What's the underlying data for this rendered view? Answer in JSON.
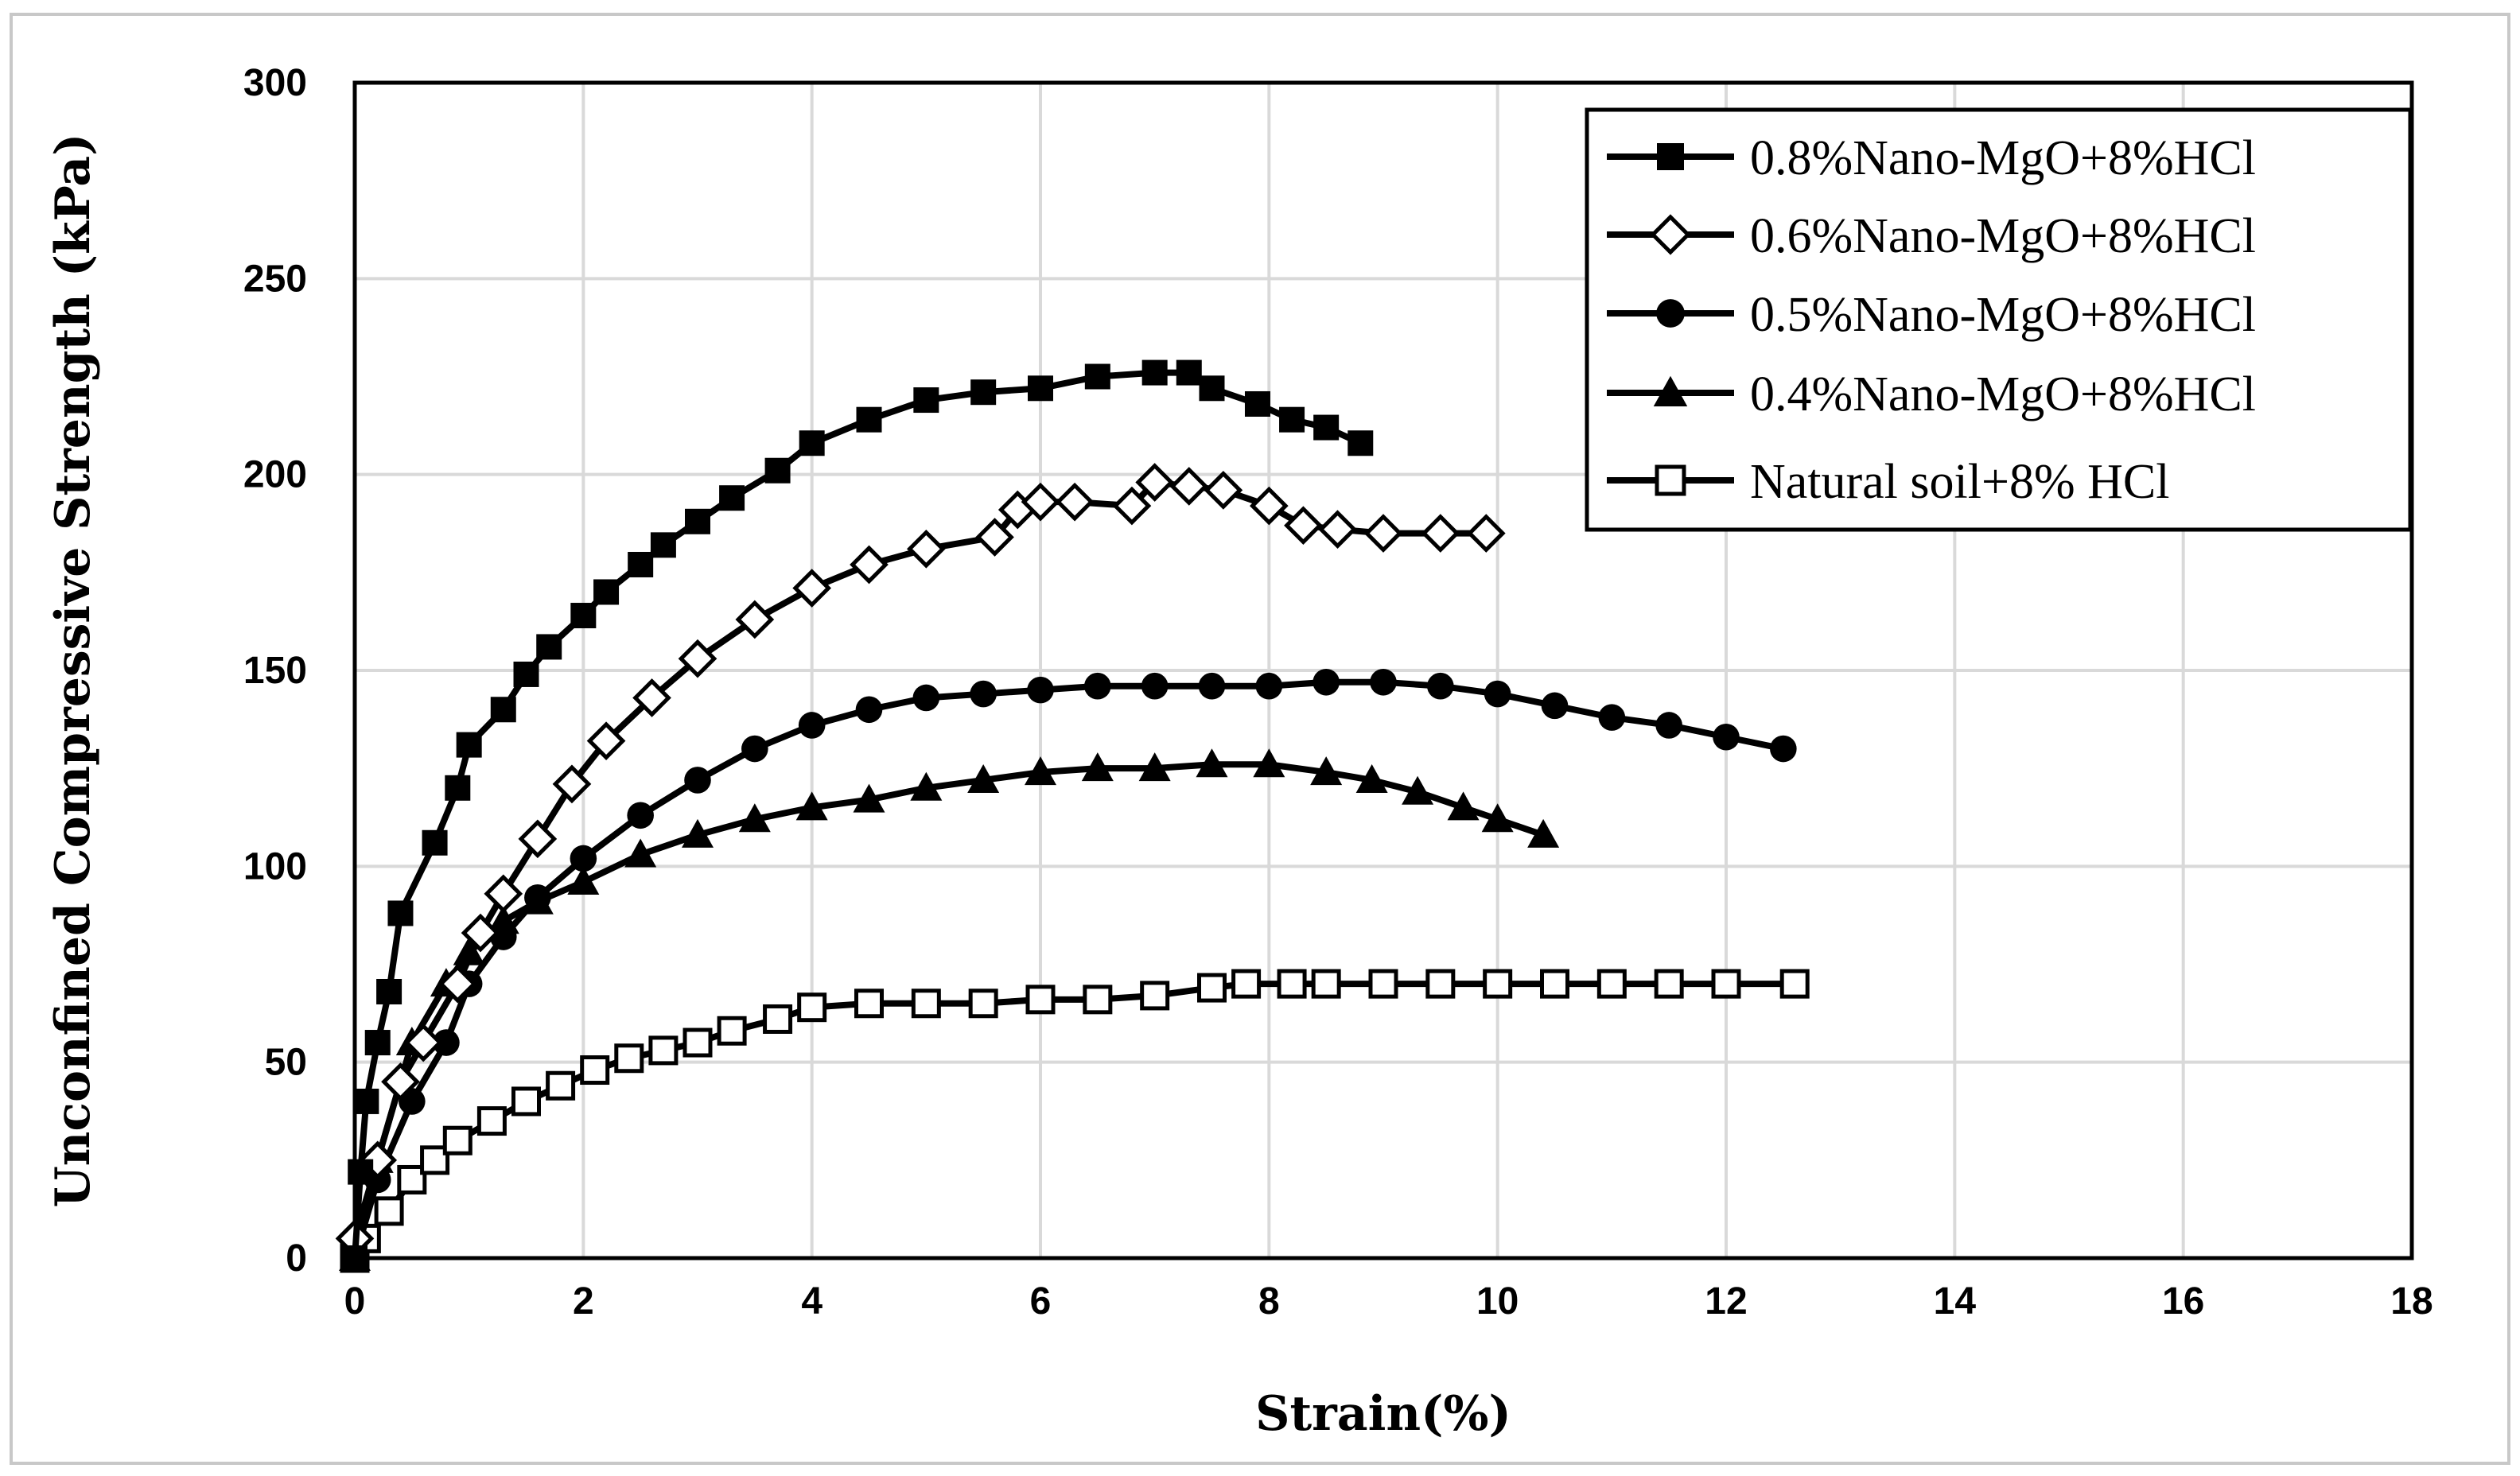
{
  "chart_data": {
    "type": "line",
    "title": "",
    "xlabel": "Strain(%)",
    "ylabel": "Unconfined Compressive Strength (kPa)",
    "xlim": [
      0,
      18
    ],
    "ylim": [
      0,
      300
    ],
    "xticks": [
      0,
      2,
      4,
      6,
      8,
      10,
      12,
      14,
      16,
      18
    ],
    "yticks": [
      0,
      50,
      100,
      150,
      200,
      250,
      300
    ],
    "grid": true,
    "legend_position": "top-right",
    "series": [
      {
        "name": "0.8%Nano-MgO+8%HCl",
        "marker": "filled-square",
        "points": [
          [
            0,
            0
          ],
          [
            0.05,
            22
          ],
          [
            0.1,
            40
          ],
          [
            0.2,
            55
          ],
          [
            0.3,
            68
          ],
          [
            0.4,
            88
          ],
          [
            0.7,
            106
          ],
          [
            0.9,
            120
          ],
          [
            1.0,
            131
          ],
          [
            1.3,
            140
          ],
          [
            1.5,
            149
          ],
          [
            1.7,
            156
          ],
          [
            2.0,
            164
          ],
          [
            2.2,
            170
          ],
          [
            2.5,
            177
          ],
          [
            2.7,
            182
          ],
          [
            3.0,
            188
          ],
          [
            3.3,
            194
          ],
          [
            3.7,
            201
          ],
          [
            4.0,
            208
          ],
          [
            4.5,
            214
          ],
          [
            5.0,
            219
          ],
          [
            5.5,
            221
          ],
          [
            6.0,
            222
          ],
          [
            6.5,
            225
          ],
          [
            7.0,
            226
          ],
          [
            7.3,
            226
          ],
          [
            7.5,
            222
          ],
          [
            7.9,
            218
          ],
          [
            8.2,
            214
          ],
          [
            8.5,
            212
          ],
          [
            8.8,
            208
          ]
        ]
      },
      {
        "name": "0.6%Nano-MgO+8%HCl",
        "marker": "open-diamond",
        "points": [
          [
            0,
            5
          ],
          [
            0.2,
            25
          ],
          [
            0.4,
            45
          ],
          [
            0.6,
            55
          ],
          [
            0.9,
            70
          ],
          [
            1.1,
            83
          ],
          [
            1.3,
            93
          ],
          [
            1.6,
            107
          ],
          [
            1.9,
            121
          ],
          [
            2.2,
            132
          ],
          [
            2.6,
            143
          ],
          [
            3.0,
            153
          ],
          [
            3.5,
            163
          ],
          [
            4.0,
            171
          ],
          [
            4.5,
            177
          ],
          [
            5.0,
            181
          ],
          [
            5.6,
            184
          ],
          [
            5.8,
            191
          ],
          [
            6.0,
            193
          ],
          [
            6.3,
            193
          ],
          [
            6.8,
            192
          ],
          [
            7.0,
            198
          ],
          [
            7.3,
            197
          ],
          [
            7.6,
            196
          ],
          [
            8.0,
            192
          ],
          [
            8.3,
            187
          ],
          [
            8.6,
            186
          ],
          [
            9.0,
            185
          ],
          [
            9.5,
            185
          ],
          [
            9.9,
            185
          ]
        ]
      },
      {
        "name": "0.5%Nano-MgO+8%HCl",
        "marker": "filled-circle",
        "points": [
          [
            0,
            0
          ],
          [
            0.2,
            20
          ],
          [
            0.5,
            40
          ],
          [
            0.8,
            55
          ],
          [
            1.0,
            70
          ],
          [
            1.3,
            82
          ],
          [
            1.6,
            92
          ],
          [
            2.0,
            102
          ],
          [
            2.5,
            113
          ],
          [
            3.0,
            122
          ],
          [
            3.5,
            130
          ],
          [
            4.0,
            136
          ],
          [
            4.5,
            140
          ],
          [
            5.0,
            143
          ],
          [
            5.5,
            144
          ],
          [
            6.0,
            145
          ],
          [
            6.5,
            146
          ],
          [
            7.0,
            146
          ],
          [
            7.5,
            146
          ],
          [
            8.0,
            146
          ],
          [
            8.5,
            147
          ],
          [
            9.0,
            147
          ],
          [
            9.5,
            146
          ],
          [
            10.0,
            144
          ],
          [
            10.5,
            141
          ],
          [
            11.0,
            138
          ],
          [
            11.5,
            136
          ],
          [
            12.0,
            133
          ],
          [
            12.5,
            130
          ]
        ]
      },
      {
        "name": "0.4%Nano-MgO+8%HCl",
        "marker": "filled-triangle",
        "points": [
          [
            0,
            0
          ],
          [
            0.2,
            25
          ],
          [
            0.5,
            55
          ],
          [
            0.8,
            70
          ],
          [
            1.0,
            78
          ],
          [
            1.3,
            86
          ],
          [
            1.6,
            91
          ],
          [
            2.0,
            96
          ],
          [
            2.5,
            103
          ],
          [
            3.0,
            108
          ],
          [
            3.5,
            112
          ],
          [
            4.0,
            115
          ],
          [
            4.5,
            117
          ],
          [
            5.0,
            120
          ],
          [
            5.5,
            122
          ],
          [
            6.0,
            124
          ],
          [
            6.5,
            125
          ],
          [
            7.0,
            125
          ],
          [
            7.5,
            126
          ],
          [
            8.0,
            126
          ],
          [
            8.5,
            124
          ],
          [
            8.9,
            122
          ],
          [
            9.3,
            119
          ],
          [
            9.7,
            115
          ],
          [
            10.0,
            112
          ],
          [
            10.4,
            108
          ]
        ]
      },
      {
        "name": "Natural soil+8% HCl",
        "marker": "open-square",
        "points": [
          [
            0,
            0
          ],
          [
            0.1,
            5
          ],
          [
            0.3,
            12
          ],
          [
            0.5,
            20
          ],
          [
            0.7,
            25
          ],
          [
            0.9,
            30
          ],
          [
            1.2,
            35
          ],
          [
            1.5,
            40
          ],
          [
            1.8,
            44
          ],
          [
            2.1,
            48
          ],
          [
            2.4,
            51
          ],
          [
            2.7,
            53
          ],
          [
            3.0,
            55
          ],
          [
            3.3,
            58
          ],
          [
            3.7,
            61
          ],
          [
            4.0,
            64
          ],
          [
            4.5,
            65
          ],
          [
            5.0,
            65
          ],
          [
            5.5,
            65
          ],
          [
            6.0,
            66
          ],
          [
            6.5,
            66
          ],
          [
            7.0,
            67
          ],
          [
            7.5,
            69
          ],
          [
            7.8,
            70
          ],
          [
            8.2,
            70
          ],
          [
            8.5,
            70
          ],
          [
            9.0,
            70
          ],
          [
            9.5,
            70
          ],
          [
            10.0,
            70
          ],
          [
            10.5,
            70
          ],
          [
            11.0,
            70
          ],
          [
            11.5,
            70
          ],
          [
            12.0,
            70
          ],
          [
            12.6,
            70
          ]
        ]
      }
    ]
  }
}
